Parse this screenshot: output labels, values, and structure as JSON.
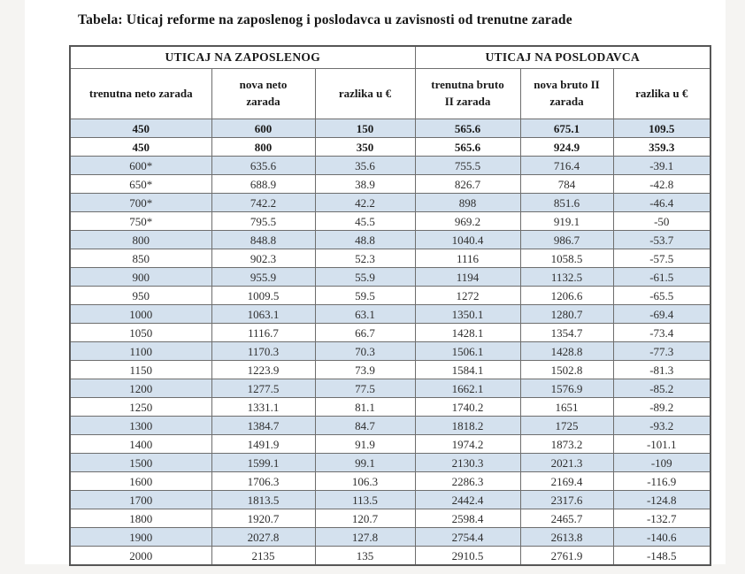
{
  "page": {
    "title": "Tabela: Uticaj reforme na zaposlenog i poslodavca u zavisnosti od trenutne zarade"
  },
  "table": {
    "group_headers": [
      "UTICAJ NA ZAPOSLENOG",
      "UTICAJ NA POSLODAVCA"
    ],
    "column_headers": [
      "trenutna neto zarada",
      "nova neto zarada",
      "razlika u €",
      "trenutna bruto II zarada",
      "nova bruto II zarada",
      "razlika u €"
    ],
    "bold_row_count": 2,
    "rows": [
      [
        "450",
        "600",
        "150",
        "565.6",
        "675.1",
        "109.5"
      ],
      [
        "450",
        "800",
        "350",
        "565.6",
        "924.9",
        "359.3"
      ],
      [
        "600*",
        "635.6",
        "35.6",
        "755.5",
        "716.4",
        "-39.1"
      ],
      [
        "650*",
        "688.9",
        "38.9",
        "826.7",
        "784",
        "-42.8"
      ],
      [
        "700*",
        "742.2",
        "42.2",
        "898",
        "851.6",
        "-46.4"
      ],
      [
        "750*",
        "795.5",
        "45.5",
        "969.2",
        "919.1",
        "-50"
      ],
      [
        "800",
        "848.8",
        "48.8",
        "1040.4",
        "986.7",
        "-53.7"
      ],
      [
        "850",
        "902.3",
        "52.3",
        "1116",
        "1058.5",
        "-57.5"
      ],
      [
        "900",
        "955.9",
        "55.9",
        "1194",
        "1132.5",
        "-61.5"
      ],
      [
        "950",
        "1009.5",
        "59.5",
        "1272",
        "1206.6",
        "-65.5"
      ],
      [
        "1000",
        "1063.1",
        "63.1",
        "1350.1",
        "1280.7",
        "-69.4"
      ],
      [
        "1050",
        "1116.7",
        "66.7",
        "1428.1",
        "1354.7",
        "-73.4"
      ],
      [
        "1100",
        "1170.3",
        "70.3",
        "1506.1",
        "1428.8",
        "-77.3"
      ],
      [
        "1150",
        "1223.9",
        "73.9",
        "1584.1",
        "1502.8",
        "-81.3"
      ],
      [
        "1200",
        "1277.5",
        "77.5",
        "1662.1",
        "1576.9",
        "-85.2"
      ],
      [
        "1250",
        "1331.1",
        "81.1",
        "1740.2",
        "1651",
        "-89.2"
      ],
      [
        "1300",
        "1384.7",
        "84.7",
        "1818.2",
        "1725",
        "-93.2"
      ],
      [
        "1400",
        "1491.9",
        "91.9",
        "1974.2",
        "1873.2",
        "-101.1"
      ],
      [
        "1500",
        "1599.1",
        "99.1",
        "2130.3",
        "2021.3",
        "-109"
      ],
      [
        "1600",
        "1706.3",
        "106.3",
        "2286.3",
        "2169.4",
        "-116.9"
      ],
      [
        "1700",
        "1813.5",
        "113.5",
        "2442.4",
        "2317.6",
        "-124.8"
      ],
      [
        "1800",
        "1920.7",
        "120.7",
        "2598.4",
        "2465.7",
        "-132.7"
      ],
      [
        "1900",
        "2027.8",
        "127.8",
        "2754.4",
        "2613.8",
        "-140.6"
      ],
      [
        "2000",
        "2135",
        "135",
        "2910.5",
        "2761.9",
        "-148.5"
      ]
    ],
    "colors": {
      "stripe_blue": "#d4e1ee",
      "border_outer": "#565656",
      "border_inner": "#6e6e6e",
      "page_background": "#ffffff",
      "margin_background": "#f5f4f2"
    }
  }
}
